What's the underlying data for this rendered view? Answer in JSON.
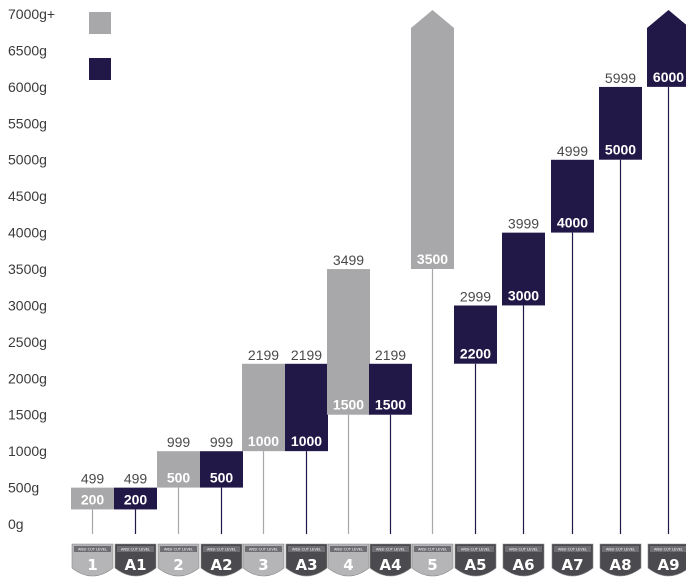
{
  "chart_data": {
    "type": "bar",
    "subtype": "floating-range",
    "y_axis": {
      "ticks": [
        "0g",
        "500g",
        "1000g",
        "1500g",
        "2000g",
        "2500g",
        "3000g",
        "3500g",
        "4000g",
        "4500g",
        "5000g",
        "5500g",
        "6000g",
        "6500g",
        "7000g+"
      ],
      "ylim": [
        0,
        7000
      ]
    },
    "series": [
      {
        "key": "en388",
        "color": "#a8a8aa"
      },
      {
        "key": "ansi",
        "color": "#221847"
      }
    ],
    "legend_placement": "top-left",
    "grid": false,
    "bars": [
      {
        "badge": "1",
        "sublabel": "ANSI CUT LEVEL",
        "series": "en388",
        "low": 200,
        "high": 499,
        "low_label": "200",
        "high_label": "499"
      },
      {
        "badge": "A1",
        "sublabel": "ANSI CUT LEVEL",
        "series": "ansi",
        "low": 200,
        "high": 499,
        "low_label": "200",
        "high_label": "499"
      },
      {
        "badge": "2",
        "sublabel": "ANSI CUT LEVEL",
        "series": "en388",
        "low": 500,
        "high": 999,
        "low_label": "500",
        "high_label": "999"
      },
      {
        "badge": "A2",
        "sublabel": "ANSI CUT LEVEL",
        "series": "ansi",
        "low": 500,
        "high": 999,
        "low_label": "500",
        "high_label": "999"
      },
      {
        "badge": "3",
        "sublabel": "ANSI CUT LEVEL",
        "series": "en388",
        "low": 1000,
        "high": 2199,
        "low_label": "1000",
        "high_label": "2199"
      },
      {
        "badge": "A3",
        "sublabel": "ANSI CUT LEVEL",
        "series": "ansi",
        "low": 1000,
        "high": 2199,
        "low_label": "1000",
        "high_label": "2199"
      },
      {
        "badge": "4",
        "sublabel": "ANSI CUT LEVEL",
        "series": "en388",
        "low": 1500,
        "high": 3499,
        "low_label": "1500",
        "high_label": "3499"
      },
      {
        "badge": "A4",
        "sublabel": "ANSI CUT LEVEL",
        "series": "ansi",
        "low": 1500,
        "high": 2199,
        "low_label": "1500",
        "high_label": "2199"
      },
      {
        "badge": "5",
        "sublabel": "ANSI CUT LEVEL",
        "series": "en388",
        "low": 3500,
        "high": 7000,
        "low_label": "3500",
        "high_label": "",
        "open_top": true
      },
      {
        "badge": "A5",
        "sublabel": "ANSI CUT LEVEL",
        "series": "ansi",
        "low": 2200,
        "high": 2999,
        "low_label": "2200",
        "high_label": "2999"
      },
      {
        "badge": "A6",
        "sublabel": "ANSI CUT LEVEL",
        "series": "ansi",
        "low": 3000,
        "high": 3999,
        "low_label": "3000",
        "high_label": "3999"
      },
      {
        "badge": "A7",
        "sublabel": "ANSI CUT LEVEL",
        "series": "ansi",
        "low": 4000,
        "high": 4999,
        "low_label": "4000",
        "high_label": "4999"
      },
      {
        "badge": "A8",
        "sublabel": "ANSI CUT LEVEL",
        "series": "ansi",
        "low": 5000,
        "high": 5999,
        "low_label": "5000",
        "high_label": "5999"
      },
      {
        "badge": "A9",
        "sublabel": "ANSI CUT LEVEL",
        "series": "ansi",
        "low": 6000,
        "high": 7000,
        "low_label": "6000",
        "high_label": "",
        "open_top": true
      }
    ]
  }
}
